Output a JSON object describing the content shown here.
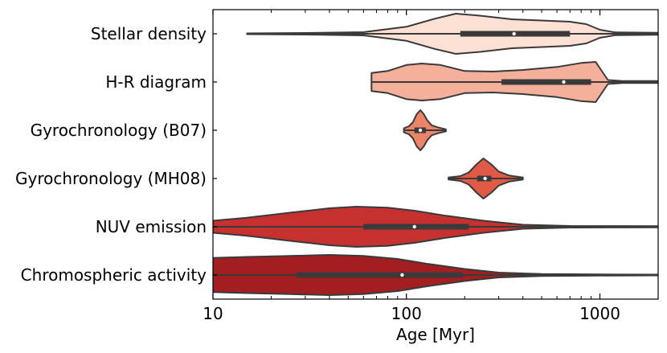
{
  "chart_data": {
    "type": "violin",
    "orientation": "horizontal",
    "title": "",
    "xlabel": "Age [Myr]",
    "ylabel": "",
    "xscale": "log",
    "xlim": [
      10,
      2000
    ],
    "xticks": [
      {
        "value": 10,
        "label": "10"
      },
      {
        "value": 100,
        "label": "100"
      },
      {
        "value": 1000,
        "label": "1000"
      }
    ],
    "grid": false,
    "categories": [
      "Stellar density",
      "H-R diagram",
      "Gyrochronology (B07)",
      "Gyrochronology (MH08)",
      "NUV emission",
      "Chromospheric activity"
    ],
    "series": [
      {
        "name": "Stellar density",
        "color": "#fbe0d3",
        "median": 360,
        "iqr": [
          190,
          700
        ],
        "range": [
          15,
          2000
        ],
        "density": [
          [
            15,
            0.02
          ],
          [
            30,
            0.04
          ],
          [
            60,
            0.08
          ],
          [
            100,
            0.35
          ],
          [
            140,
            0.75
          ],
          [
            180,
            1.0
          ],
          [
            240,
            0.9
          ],
          [
            350,
            0.72
          ],
          [
            500,
            0.66
          ],
          [
            700,
            0.6
          ],
          [
            850,
            0.48
          ],
          [
            1000,
            0.2
          ],
          [
            1200,
            0.07
          ],
          [
            2000,
            0.05
          ]
        ]
      },
      {
        "name": "H-R diagram",
        "color": "#f4b09a",
        "median": 650,
        "iqr": [
          310,
          900
        ],
        "range": [
          66,
          2000
        ],
        "density": [
          [
            66,
            0.45
          ],
          [
            80,
            0.55
          ],
          [
            100,
            0.85
          ],
          [
            120,
            0.92
          ],
          [
            150,
            0.85
          ],
          [
            200,
            0.55
          ],
          [
            280,
            0.52
          ],
          [
            400,
            0.6
          ],
          [
            600,
            0.75
          ],
          [
            800,
            0.95
          ],
          [
            950,
            1.0
          ],
          [
            1100,
            0.1
          ],
          [
            1300,
            0.05
          ],
          [
            2000,
            0.05
          ]
        ]
      },
      {
        "name": "Gyrochronology (B07)",
        "color": "#ec8469",
        "median": 118,
        "iqr": [
          110,
          126
        ],
        "range": [
          97,
          160
        ],
        "density": [
          [
            97,
            0.1
          ],
          [
            103,
            0.2
          ],
          [
            108,
            0.4
          ],
          [
            113,
            0.8
          ],
          [
            118,
            1.0
          ],
          [
            123,
            0.8
          ],
          [
            128,
            0.5
          ],
          [
            135,
            0.25
          ],
          [
            145,
            0.15
          ],
          [
            160,
            0.05
          ]
        ]
      },
      {
        "name": "Gyrochronology (MH08)",
        "color": "#e05a45",
        "median": 255,
        "iqr": [
          232,
          275
        ],
        "range": [
          165,
          400
        ],
        "density": [
          [
            165,
            0.05
          ],
          [
            190,
            0.12
          ],
          [
            210,
            0.3
          ],
          [
            230,
            0.7
          ],
          [
            250,
            1.0
          ],
          [
            275,
            0.7
          ],
          [
            300,
            0.35
          ],
          [
            340,
            0.15
          ],
          [
            400,
            0.05
          ]
        ]
      },
      {
        "name": "NUV emission",
        "color": "#c63130",
        "median": 110,
        "iqr": [
          60,
          210
        ],
        "range": [
          10,
          2000
        ],
        "density": [
          [
            10,
            0.3
          ],
          [
            15,
            0.45
          ],
          [
            25,
            0.7
          ],
          [
            40,
            0.92
          ],
          [
            55,
            1.0
          ],
          [
            80,
            0.95
          ],
          [
            110,
            0.8
          ],
          [
            160,
            0.55
          ],
          [
            250,
            0.3
          ],
          [
            400,
            0.1
          ],
          [
            700,
            0.04
          ],
          [
            2000,
            0.03
          ]
        ]
      },
      {
        "name": "Chromospheric activity",
        "color": "#a31e20",
        "median": 95,
        "iqr": [
          27,
          195
        ],
        "range": [
          10,
          2000
        ],
        "density": [
          [
            10,
            0.85
          ],
          [
            15,
            0.9
          ],
          [
            25,
            0.95
          ],
          [
            40,
            1.0
          ],
          [
            60,
            0.95
          ],
          [
            90,
            0.8
          ],
          [
            130,
            0.55
          ],
          [
            200,
            0.3
          ],
          [
            300,
            0.12
          ],
          [
            500,
            0.05
          ],
          [
            1000,
            0.03
          ],
          [
            2000,
            0.02
          ]
        ]
      }
    ]
  }
}
